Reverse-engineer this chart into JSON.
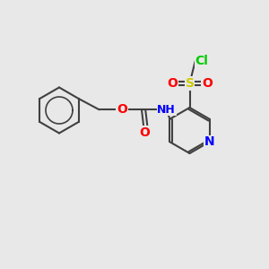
{
  "background_color": "#e8e8e8",
  "bond_color": "#404040",
  "atom_colors": {
    "O": "#ff0000",
    "N": "#0000ff",
    "S": "#cccc00",
    "Cl": "#00cc00",
    "H": "#808080",
    "C": "#404040"
  },
  "bond_width": 1.5,
  "font_size": 9,
  "figsize": [
    3.0,
    3.0
  ],
  "dpi": 100
}
